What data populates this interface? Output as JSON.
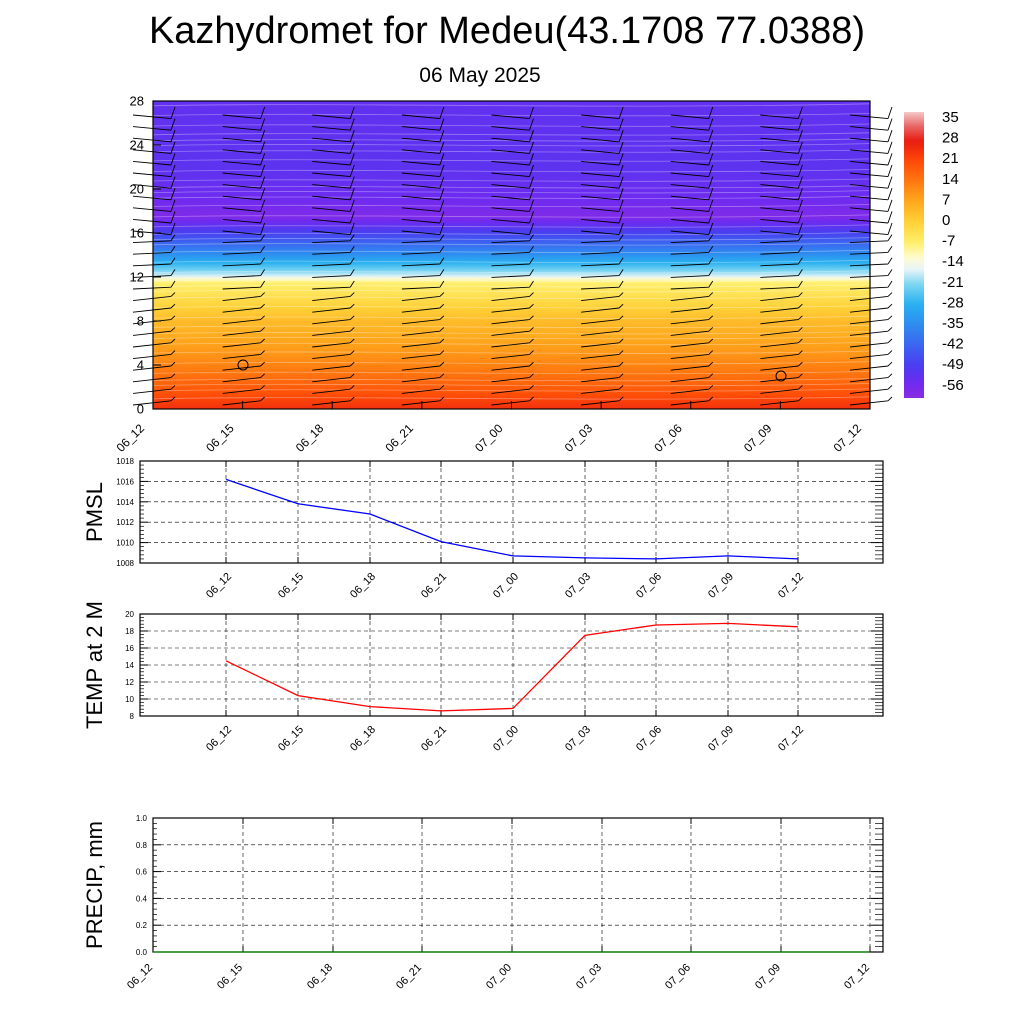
{
  "title": "Kazhydromet for Medeu(43.1708 77.0388)",
  "subtitle": "06 May 2025",
  "chart_data": [
    {
      "type": "heatmap",
      "name": "cross-section",
      "x_ticks": [
        "06_12",
        "06_15",
        "06_18",
        "06_21",
        "07_00",
        "07_03",
        "07_06",
        "07_09",
        "07_12"
      ],
      "y_ticks": [
        "0",
        "4",
        "8",
        "12",
        "16",
        "20",
        "24",
        "28"
      ],
      "ylim": [
        0,
        28
      ],
      "colorbar_labels": [
        "35",
        "28",
        "21",
        "14",
        "7",
        "0",
        "-7",
        "-14",
        "-21",
        "-28",
        "-35",
        "-42",
        "-49",
        "-56"
      ],
      "colorbar_range": [
        -60,
        38
      ],
      "approx_profile": [
        {
          "level": 0,
          "value": 25
        },
        {
          "level": 2,
          "value": 18
        },
        {
          "level": 5,
          "value": 10
        },
        {
          "level": 8,
          "value": 4
        },
        {
          "level": 11.5,
          "value": -7
        },
        {
          "level": 12.2,
          "value": -18
        },
        {
          "level": 14,
          "value": -34
        },
        {
          "level": 16,
          "value": -48
        },
        {
          "level": 17.5,
          "value": -58
        },
        {
          "level": 19,
          "value": -55
        },
        {
          "level": 22,
          "value": -52
        },
        {
          "level": 28,
          "value": -53
        }
      ],
      "colors": {
        "low": "#8a2be2",
        "zero": "#fff06e",
        "high": "#ff2200"
      }
    },
    {
      "type": "line",
      "ylabel": "PMSL",
      "categories": [
        "06_12",
        "06_15",
        "06_18",
        "06_21",
        "07_00",
        "07_03",
        "07_06",
        "07_09",
        "07_12"
      ],
      "series": [
        {
          "values": [
            1016.2,
            1013.8,
            1012.8,
            1010.1,
            1008.7,
            1008.5,
            1008.4,
            1008.7,
            1008.4
          ],
          "color": "#0000ff"
        }
      ],
      "ylim": [
        1008,
        1018
      ],
      "y_ticks": [
        "1008",
        "1010",
        "1012",
        "1014",
        "1016",
        "1018"
      ],
      "grid": true
    },
    {
      "type": "line",
      "ylabel": "TEMP at 2 M",
      "categories": [
        "06_12",
        "06_15",
        "06_18",
        "06_21",
        "07_00",
        "07_03",
        "07_06",
        "07_09",
        "07_12"
      ],
      "series": [
        {
          "values": [
            14.5,
            10.4,
            9.1,
            8.6,
            8.9,
            17.5,
            18.7,
            18.9,
            18.5
          ],
          "color": "#ff0000"
        }
      ],
      "ylim": [
        8,
        20
      ],
      "y_ticks": [
        "8",
        "10",
        "12",
        "14",
        "16",
        "18",
        "20"
      ],
      "grid": true
    },
    {
      "type": "line",
      "ylabel": "PRECIP, mm",
      "categories": [
        "06_12",
        "06_15",
        "06_18",
        "06_21",
        "07_00",
        "07_03",
        "07_06",
        "07_09",
        "07_12"
      ],
      "series": [
        {
          "values": [
            0,
            0,
            0,
            0,
            0,
            0,
            0,
            0,
            0
          ],
          "color": "#008000"
        }
      ],
      "ylim": [
        0,
        1
      ],
      "y_ticks": [
        "0.0",
        "0.2",
        "0.4",
        "0.6",
        "0.8",
        "1.0"
      ],
      "grid": true
    }
  ]
}
